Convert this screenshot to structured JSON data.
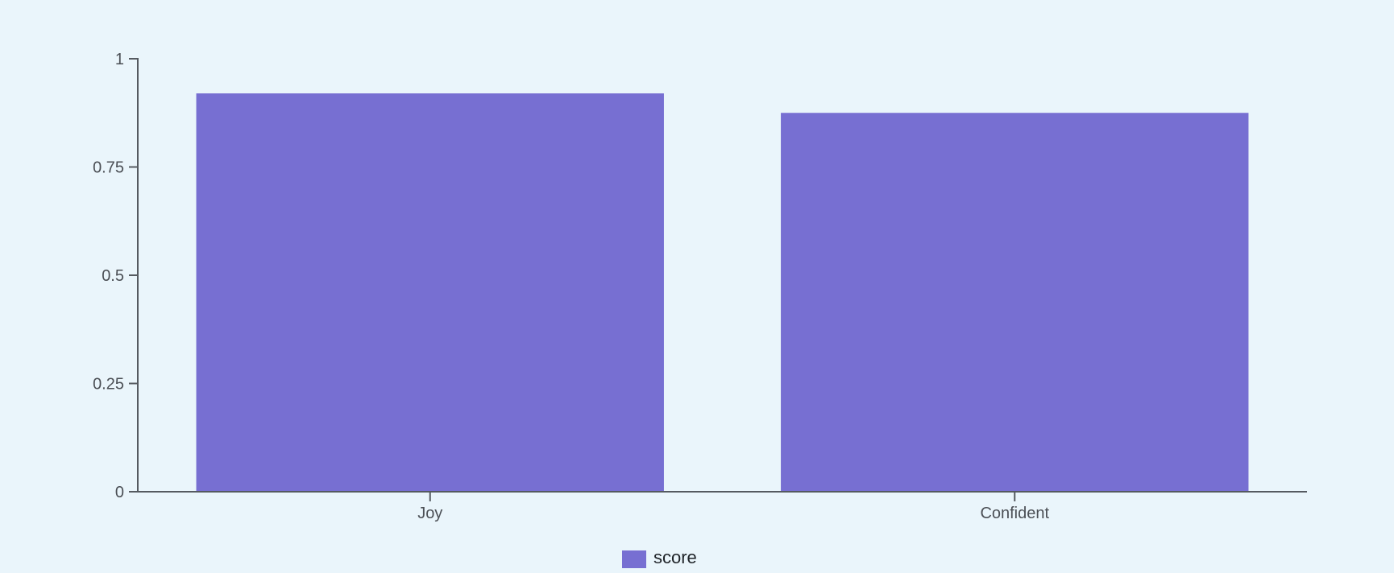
{
  "chart_data": {
    "type": "bar",
    "categories": [
      "Joy",
      "Confident"
    ],
    "series": [
      {
        "name": "score",
        "values": [
          0.92,
          0.875
        ],
        "color": "#776fd2"
      }
    ],
    "ylim": [
      0,
      1
    ],
    "yticks": [
      "0",
      "0.25",
      "0.5",
      "0.75",
      "1"
    ],
    "grid": false,
    "legend": "bottom-center",
    "title": "",
    "xlabel": "",
    "ylabel": ""
  },
  "colors": {
    "background": "#eaf5fb",
    "axis": "#555a60",
    "text": "#4b4f55"
  }
}
